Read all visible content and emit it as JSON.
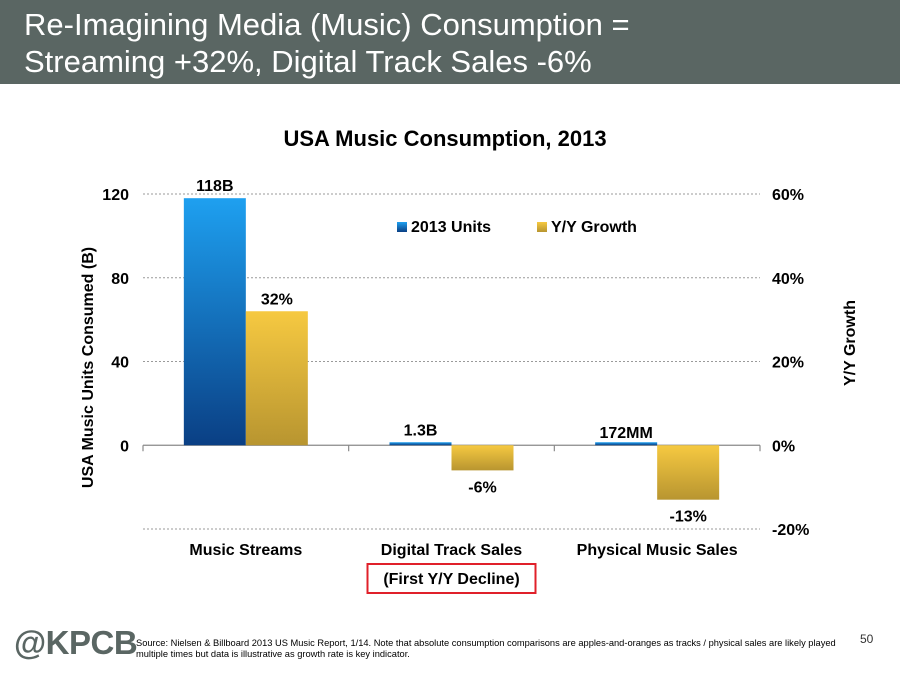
{
  "slide": {
    "title_line1": "Re-Imagining Media (Music) Consumption =",
    "title_line2": "Streaming +32%, Digital Track Sales -6%"
  },
  "chart_data": {
    "type": "bar",
    "title": "USA Music Consumption, 2013",
    "categories": [
      "Music Streams",
      "Digital Track Sales",
      "Physical Music Sales"
    ],
    "category_note": {
      "index": 1,
      "text": "(First Y/Y Decline)"
    },
    "series": [
      {
        "name": "2013 Units",
        "axis": "left",
        "values": [
          118,
          1.3,
          0.172
        ],
        "labels": [
          "118B",
          "1.3B",
          "172MM"
        ],
        "color_top": "#1ea0f0",
        "color_bottom": "#0a3f84"
      },
      {
        "name": "Y/Y Growth",
        "axis": "right",
        "values": [
          32,
          -6,
          -13
        ],
        "labels": [
          "32%",
          "-6%",
          "-13%"
        ],
        "color_top": "#f6c941",
        "color_bottom": "#b89530"
      }
    ],
    "ylabel": "USA Music Units Consumed (B)",
    "y2label": "Y/Y Growth",
    "ylim": [
      -40,
      120
    ],
    "yticks": [
      0,
      40,
      80,
      120
    ],
    "ytick_labels": [
      "0",
      "40",
      "80",
      "120"
    ],
    "y2lim": [
      -20,
      60
    ],
    "y2ticks": [
      -20,
      0,
      20,
      40,
      60
    ],
    "y2tick_labels": [
      "-20%",
      "0%",
      "20%",
      "40%",
      "60%"
    ],
    "grid": true,
    "legend_position": "top-center"
  },
  "footer": {
    "logo": "@KPCB",
    "source": "Source: Nielsen & Billboard 2013 US Music Report, 1/14. Note that absolute consumption comparisons are apples-and-oranges as tracks / physical sales are likely played multiple times but data is illustrative as growth rate is key indicator.",
    "page_number": "50"
  },
  "colors": {
    "header_bg": "#5a6663",
    "note_border": "#e0202a",
    "grid": "#9a9a9a"
  }
}
